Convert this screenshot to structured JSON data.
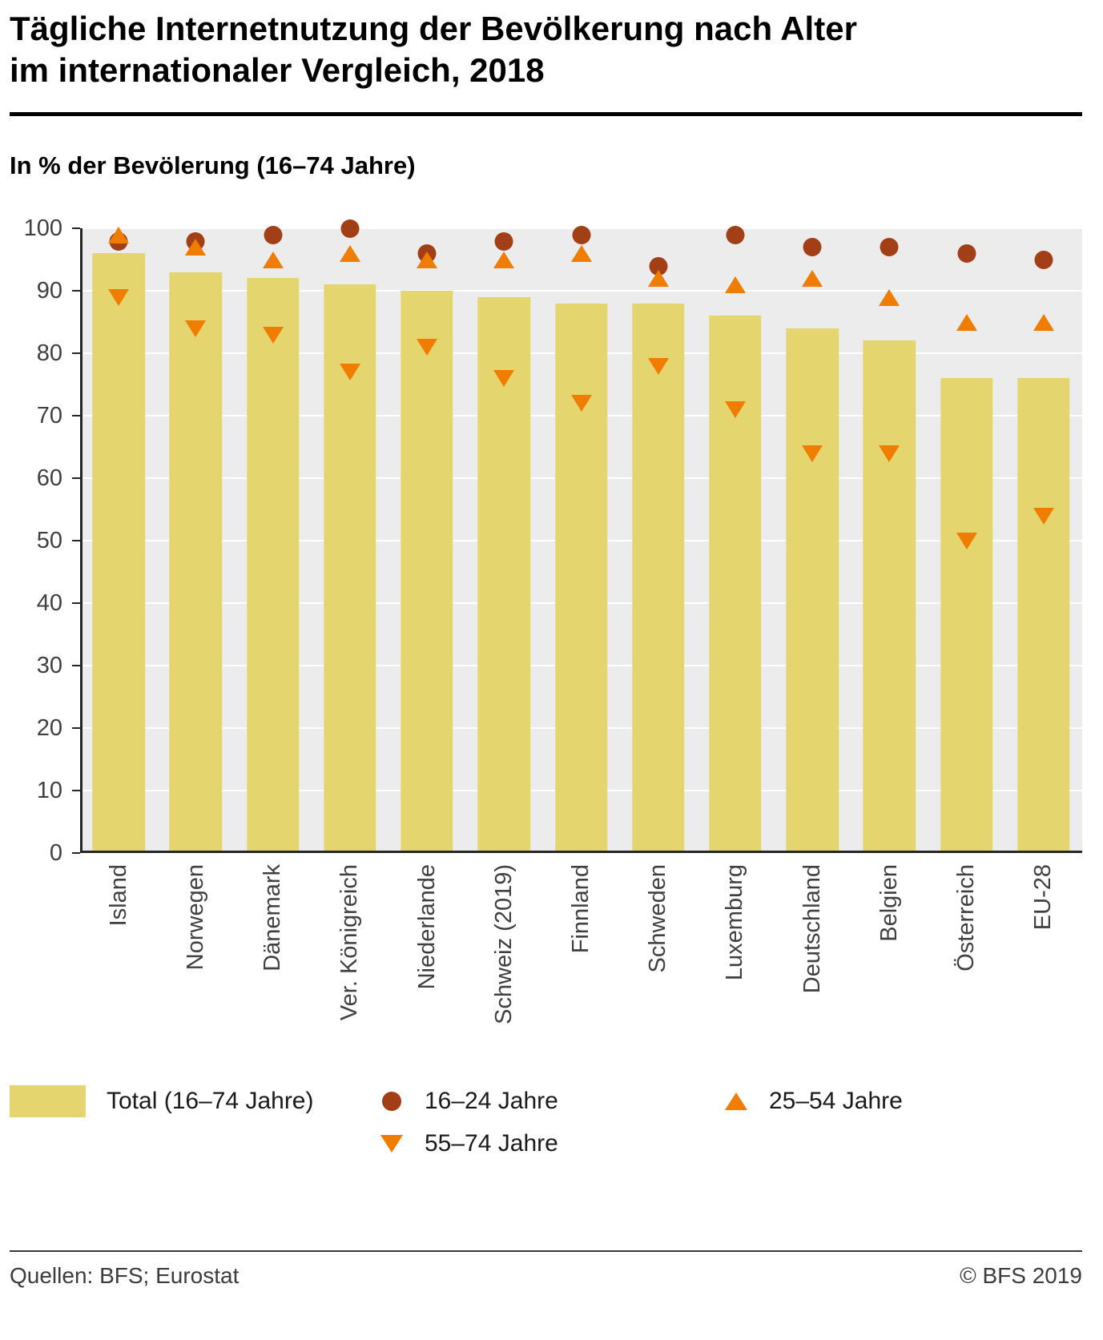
{
  "header": {
    "title_line1": "Tägliche Internetnutzung der Bevölkerung nach Alter",
    "title_line2": "im internationaler Vergleich, 2018",
    "subtitle": "In % der Bevölerung (16–74 Jahre)"
  },
  "chart_data": {
    "type": "bar",
    "title": "Tägliche Internetnutzung der Bevölkerung nach Alter im internationaler Vergleich, 2018",
    "subtitle": "In % der Bevölerung (16–74 Jahre)",
    "categories": [
      "Island",
      "Norwegen",
      "Dänemark",
      "Ver. Königreich",
      "Niederlande",
      "Schweiz (2019)",
      "Finnland",
      "Schweden",
      "Luxemburg",
      "Deutschland",
      "Belgien",
      "Österreich",
      "EU-28"
    ],
    "series": [
      {
        "name": "Total (16–74 Jahre)",
        "marker": "bar",
        "color": "#e5d56f",
        "values": [
          96,
          93,
          92,
          91,
          90,
          89,
          88,
          88,
          86,
          84,
          82,
          76,
          76
        ]
      },
      {
        "name": "16–24 Jahre",
        "marker": "circle",
        "color": "#a23f17",
        "values": [
          98,
          98,
          99,
          100,
          96,
          98,
          99,
          94,
          99,
          97,
          97,
          96,
          95
        ]
      },
      {
        "name": "25–54 Jahre",
        "marker": "triangle-up",
        "color": "#f07c00",
        "values": [
          99,
          97,
          95,
          96,
          95,
          95,
          96,
          92,
          91,
          92,
          89,
          85,
          85
        ]
      },
      {
        "name": "55–74 Jahre",
        "marker": "triangle-down",
        "color": "#f07c00",
        "values": [
          89,
          84,
          83,
          77,
          81,
          76,
          72,
          78,
          71,
          64,
          64,
          50,
          54
        ]
      }
    ],
    "xlabel": "",
    "ylabel": "",
    "ylim": [
      0,
      100
    ],
    "yticks": [
      0,
      10,
      20,
      30,
      40,
      50,
      60,
      70,
      80,
      90,
      100
    ],
    "grid": true,
    "plot_bg": "#ececec",
    "grid_color": "#ffffff",
    "legend_position": "bottom"
  },
  "footer": {
    "source": "Quellen: BFS; Eurostat",
    "copyright": "© BFS 2019"
  }
}
